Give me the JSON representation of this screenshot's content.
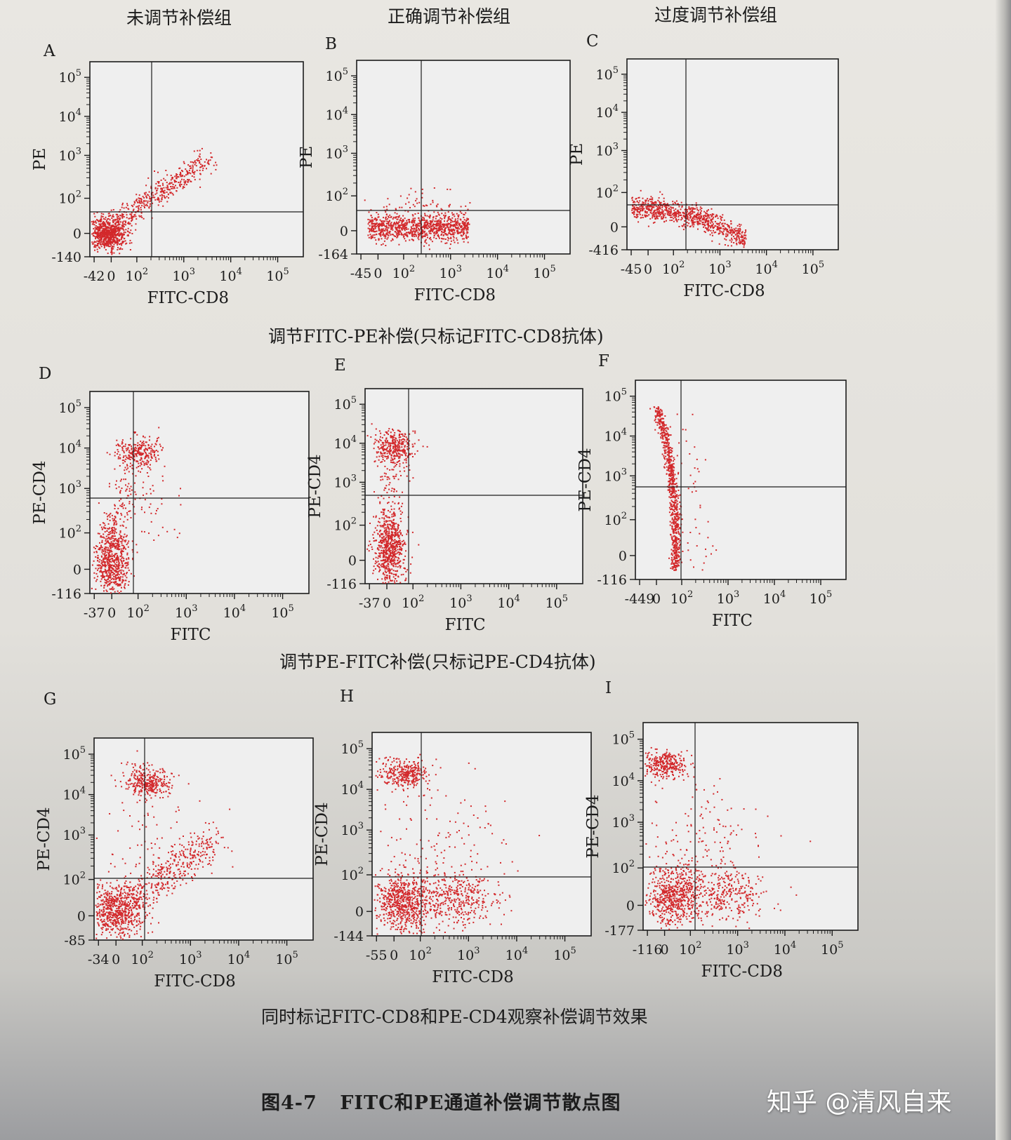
{
  "group_titles": [
    "未调节补偿组",
    "正确调节补偿组",
    "过度调节补偿组"
  ],
  "section_captions": [
    "调节FITC-PE补偿(只标记FITC-CD8抗体)",
    "调节PE-FITC补偿(只标记PE-CD4抗体)",
    "同时标记FITC-CD8和PE-CD4观察补偿调节效果"
  ],
  "figure_caption": {
    "label": "图4-7",
    "title": "FITC和PE通道补偿调节散点图"
  },
  "watermark": "知乎 @清风自来",
  "colors": {
    "dots": "#d3282b",
    "axis": "#1c1c1c",
    "plot_bg": "#efefef"
  },
  "chart_data": [
    {
      "panel": "A",
      "type": "scatter",
      "xlabel": "FITC-CD8",
      "ylabel": "PE",
      "x_ticks": [
        "-42",
        "0",
        "10^2",
        "10^3",
        "10^4",
        "10^5"
      ],
      "y_ticks": [
        "-140",
        "0",
        "10^2",
        "10^3",
        "10^4",
        "10^5"
      ],
      "quadrant_gate": {
        "x": "≈10^2",
        "y": "≈10^2"
      },
      "populations": [
        {
          "description": "double-negative cluster",
          "x_center": "~0-10^2",
          "y_center": "~0"
        },
        {
          "description": "diagonal FITC→PE spillover streak",
          "x_range": [
            "10^2",
            "10^4"
          ],
          "y_range": [
            "10^2",
            "10^4"
          ]
        }
      ]
    },
    {
      "panel": "B",
      "type": "scatter",
      "xlabel": "FITC-CD8",
      "ylabel": "PE",
      "x_ticks": [
        "-45",
        "0",
        "10^2",
        "10^3",
        "10^4",
        "10^5"
      ],
      "y_ticks": [
        "-164",
        "0",
        "10^2",
        "10^3",
        "10^4",
        "10^5"
      ],
      "quadrant_gate": {
        "x": "≈10^2",
        "y": "≈10^2"
      },
      "populations": [
        {
          "description": "horizontal band, PE near 0",
          "x_range": [
            "0",
            "10^3"
          ],
          "y_center": "~0-10^2"
        }
      ]
    },
    {
      "panel": "C",
      "type": "scatter",
      "xlabel": "FITC-CD8",
      "ylabel": "PE",
      "x_ticks": [
        "-45",
        "0",
        "10^2",
        "10^3",
        "10^4",
        "10^5"
      ],
      "y_ticks": [
        "-416",
        "0",
        "10^2",
        "10^3",
        "10^4",
        "10^5"
      ],
      "quadrant_gate": {
        "x": "≈10^2",
        "y": "≈10^2"
      },
      "populations": [
        {
          "description": "band curving downward (over-compensated)",
          "x_range": [
            "0",
            "10^3"
          ],
          "y_range": [
            "-416",
            "10^2"
          ]
        }
      ]
    },
    {
      "panel": "D",
      "type": "scatter",
      "xlabel": "FITC",
      "ylabel": "PE-CD4",
      "x_ticks": [
        "-37",
        "0",
        "10^2",
        "10^3",
        "10^4",
        "10^5"
      ],
      "y_ticks": [
        "-116",
        "0",
        "10^2",
        "10^3",
        "10^4",
        "10^5"
      ],
      "quadrant_gate": {
        "x": "≈10^2",
        "y": "≈10^3"
      },
      "populations": [
        {
          "description": "double-negative cluster",
          "x_center": "~0",
          "y_center": "~10^2"
        },
        {
          "description": "CD4+ cluster shifted right (PE→FITC spillover)",
          "x_center": "~10^2",
          "y_center": "~10^4"
        }
      ]
    },
    {
      "panel": "E",
      "type": "scatter",
      "xlabel": "FITC",
      "ylabel": "PE-CD4",
      "x_ticks": [
        "-37",
        "0",
        "10^2",
        "10^3",
        "10^4",
        "10^5"
      ],
      "y_ticks": [
        "-116",
        "0",
        "10^2",
        "10^3",
        "10^4",
        "10^5"
      ],
      "quadrant_gate": {
        "x": "≈10^2",
        "y": "≈10^3"
      },
      "populations": [
        {
          "description": "CD4- cluster",
          "x_center": "~0",
          "y_center": "~10^2"
        },
        {
          "description": "CD4+ cluster vertically above",
          "x_center": "~0",
          "y_center": "~10^4"
        }
      ]
    },
    {
      "panel": "F",
      "type": "scatter",
      "xlabel": "FITC",
      "ylabel": "PE-CD4",
      "x_ticks": [
        "-449",
        "0",
        "10^2",
        "10^3",
        "10^4",
        "10^5"
      ],
      "y_ticks": [
        "-116",
        "0",
        "10^2",
        "10^3",
        "10^4",
        "10^5"
      ],
      "quadrant_gate": {
        "x": "≈10^2",
        "y": "≈10^3"
      },
      "populations": [
        {
          "description": "vertical streak bending left at high PE (over-compensated)",
          "x_center": "~0",
          "y_range": [
            "0",
            "10^4+"
          ]
        }
      ]
    },
    {
      "panel": "G",
      "type": "scatter",
      "xlabel": "FITC-CD8",
      "ylabel": "PE-CD4",
      "x_ticks": [
        "-34",
        "0",
        "10^2",
        "10^3",
        "10^4",
        "10^5"
      ],
      "y_ticks": [
        "-85",
        "0",
        "10^2",
        "10^3",
        "10^4",
        "10^5"
      ],
      "quadrant_gate": {
        "x": "≈10^2",
        "y": "≈10^2"
      },
      "populations": [
        {
          "description": "CD4+ cluster",
          "x_center": "~10^2",
          "y_center": "~10^4"
        },
        {
          "description": "double-negative cluster",
          "x_center": "~0",
          "y_center": "~0"
        },
        {
          "description": "diagonal CD8 streak",
          "x_range": [
            "10^2",
            "10^4"
          ],
          "y_range": [
            "0",
            "10^3"
          ]
        }
      ]
    },
    {
      "panel": "H",
      "type": "scatter",
      "xlabel": "FITC-CD8",
      "ylabel": "PE-CD4",
      "x_ticks": [
        "-55",
        "0",
        "10^2",
        "10^3",
        "10^4",
        "10^5"
      ],
      "y_ticks": [
        "-144",
        "0",
        "10^2",
        "10^3",
        "10^4",
        "10^5"
      ],
      "quadrant_gate": {
        "x": "≈10^2",
        "y": "≈10^2"
      },
      "populations": [
        {
          "description": "CD4+ cluster",
          "x_center": "~0",
          "y_center": "~10^4"
        },
        {
          "description": "double-negative cluster",
          "x_center": "~0",
          "y_center": "~0"
        },
        {
          "description": "CD8+ cluster",
          "x_center": "~10^3",
          "y_center": "~0"
        }
      ]
    },
    {
      "panel": "I",
      "type": "scatter",
      "xlabel": "FITC-CD8",
      "ylabel": "PE-CD4",
      "x_ticks": [
        "-116",
        "0",
        "10^2",
        "10^3",
        "10^4",
        "10^5"
      ],
      "y_ticks": [
        "-177",
        "0",
        "10^2",
        "10^3",
        "10^4",
        "10^5"
      ],
      "quadrant_gate": {
        "x": "≈10^2",
        "y": "≈10^2"
      },
      "populations": [
        {
          "description": "CD4+ cluster",
          "x_center": "~0",
          "y_center": "~10^4"
        },
        {
          "description": "double-negative cluster",
          "x_center": "~0",
          "y_center": "~0"
        },
        {
          "description": "CD8+ cluster",
          "x_center": "~10^3",
          "y_center": "~0"
        }
      ]
    }
  ]
}
